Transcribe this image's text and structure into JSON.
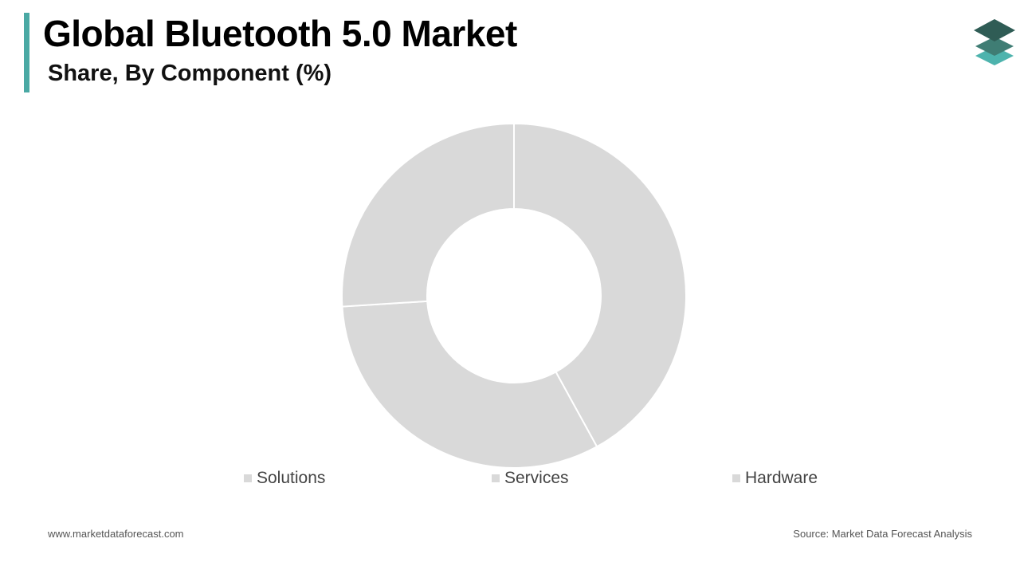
{
  "header": {
    "title": "Global Bluetooth 5.0 Market",
    "subtitle": "Share, By Component (%)"
  },
  "colors": {
    "accent": "#4aa9a4",
    "slice_fill": "#d9d9d9",
    "slice_border": "#ffffff",
    "logo_dark": "#2f5c55",
    "logo_mid": "#3f7d74",
    "logo_light": "#4db3ad"
  },
  "logo": {
    "icon": "stacked-layers-icon"
  },
  "chart_data": {
    "type": "pie",
    "donut": true,
    "categories": [
      "Hardware",
      "Services",
      "Solutions"
    ],
    "values": [
      42,
      32,
      26
    ],
    "unit": "%",
    "legend_position": "bottom",
    "legend_order": [
      "Solutions",
      "Services",
      "Hardware"
    ]
  },
  "footer": {
    "website": "www.marketdataforecast.com",
    "source": "Source: Market Data Forecast Analysis"
  }
}
